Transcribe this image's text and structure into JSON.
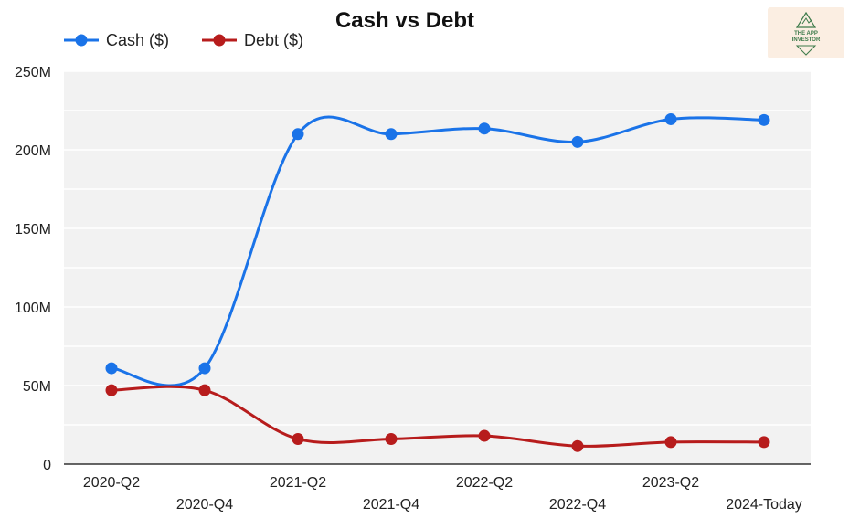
{
  "chart_data": {
    "type": "line",
    "title": "Cash vs Debt",
    "xlabel": "",
    "ylabel": "",
    "categories": [
      "2020-Q2",
      "2020-Q4",
      "2021-Q2",
      "2021-Q4",
      "2022-Q2",
      "2022-Q4",
      "2023-Q2",
      "2024-Today"
    ],
    "series": [
      {
        "name": "Cash ($)",
        "color": "#1a73e8",
        "values": [
          61000000,
          61000000,
          210000000,
          210000000,
          213500000,
          205000000,
          219500000,
          219000000
        ]
      },
      {
        "name": "Debt ($)",
        "color": "#b71c1c",
        "values": [
          47000000,
          47000000,
          16000000,
          16000000,
          18000000,
          11500000,
          14000000,
          14000000
        ]
      }
    ],
    "ylim": [
      0,
      250000000
    ],
    "yticks": [
      {
        "value": 0,
        "label": "0"
      },
      {
        "value": 50000000,
        "label": "50M"
      },
      {
        "value": 100000000,
        "label": "100M"
      },
      {
        "value": 150000000,
        "label": "150M"
      },
      {
        "value": 200000000,
        "label": "200M"
      },
      {
        "value": 250000000,
        "label": "250M"
      }
    ],
    "grid": true,
    "legend_position": "top-left",
    "plot_background": "#f2f2f2"
  },
  "logo": {
    "text_line1": "THE APP",
    "text_line2": "INVESTOR"
  }
}
